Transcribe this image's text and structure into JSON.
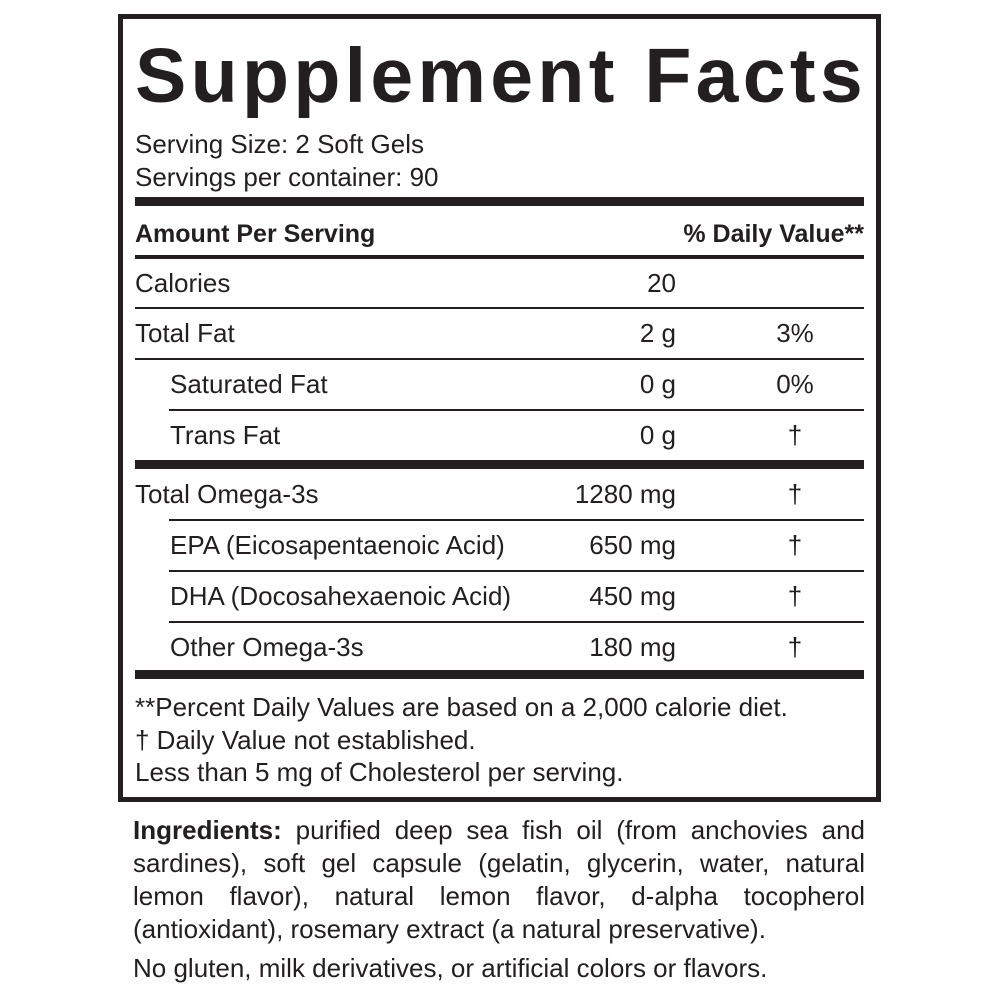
{
  "title": "Supplement Facts",
  "serving_size": "Serving Size: 2 Soft Gels",
  "servings_per_container": "Servings per container: 90",
  "header": {
    "amount": "Amount Per Serving",
    "dv": "% Daily Value**"
  },
  "rows": [
    {
      "name": "Calories",
      "amount": "20",
      "dv": ""
    },
    {
      "name": "Total Fat",
      "amount": "2 g",
      "dv": "3%"
    },
    {
      "name": "Saturated Fat",
      "amount": "0 g",
      "dv": "0%"
    },
    {
      "name": "Trans Fat",
      "amount": "0 g",
      "dv": "†"
    },
    {
      "name": "Total Omega-3s",
      "amount": "1280 mg",
      "dv": "†"
    },
    {
      "name": "EPA (Eicosapentaenoic Acid)",
      "amount": "650 mg",
      "dv": "†"
    },
    {
      "name": "DHA (Docosahexaenoic Acid)",
      "amount": "450 mg",
      "dv": "†"
    },
    {
      "name": "Other Omega-3s",
      "amount": "180 mg",
      "dv": "†"
    }
  ],
  "footnotes": [
    "**Percent Daily Values are based on a 2,000 calorie diet.",
    "†  Daily Value not established.",
    "Less than 5 mg of Cholesterol per serving."
  ],
  "ingredients": {
    "label": "Ingredients:",
    "text": " purified deep sea fish oil (from anchovies and sardines), soft gel capsule (gelatin, glycerin, water, natural lemon flavor), natural lemon flavor, d-alpha tocopherol (antioxidant), rosemary extract (a natural preservative)."
  },
  "allergen_note": "No gluten, milk derivatives, or artificial colors or flavors."
}
